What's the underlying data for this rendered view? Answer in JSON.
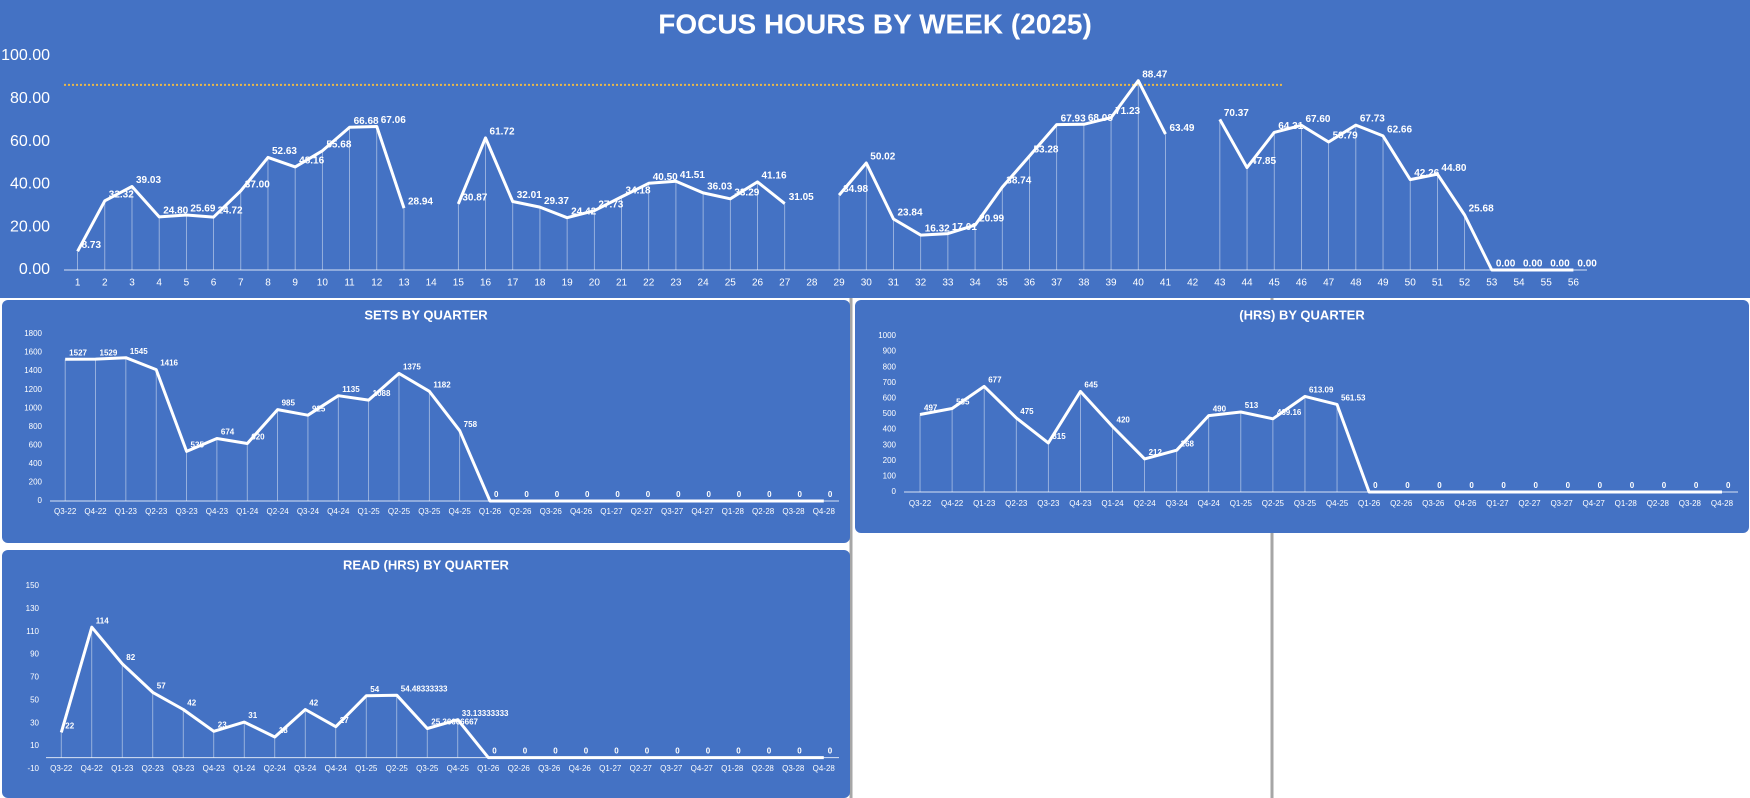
{
  "chart_data": [
    {
      "type": "line",
      "title": "FOCUS HOURS BY WEEK (2025)",
      "color": "#ffffff",
      "background": "#4472c4",
      "grid": false,
      "categories": [
        "1",
        "2",
        "3",
        "4",
        "5",
        "6",
        "7",
        "8",
        "9",
        "10",
        "11",
        "12",
        "13",
        "14",
        "15",
        "16",
        "17",
        "18",
        "19",
        "20",
        "21",
        "22",
        "23",
        "24",
        "25",
        "26",
        "27",
        "28",
        "29",
        "30",
        "31",
        "32",
        "33",
        "34",
        "35",
        "36",
        "37",
        "38",
        "39",
        "40",
        "41",
        "42",
        "43",
        "44",
        "45",
        "46",
        "47",
        "48",
        "49",
        "50",
        "51",
        "52",
        "53",
        "54",
        "55",
        "56"
      ],
      "values": [
        8.73,
        32.32,
        39.03,
        24.8,
        25.69,
        24.72,
        37.0,
        52.63,
        48.16,
        55.68,
        66.68,
        67.06,
        28.94,
        null,
        30.87,
        61.72,
        32.01,
        29.37,
        24.42,
        27.73,
        34.18,
        40.5,
        41.51,
        36.03,
        33.29,
        41.16,
        31.05,
        null,
        34.98,
        50.02,
        23.84,
        16.32,
        17.01,
        20.99,
        38.74,
        53.28,
        67.93,
        68.08,
        71.23,
        88.47,
        63.49,
        null,
        70.37,
        47.85,
        64.31,
        67.6,
        59.79,
        67.73,
        62.66,
        42.26,
        44.8,
        25.68,
        0,
        0,
        0,
        0
      ],
      "value_labels": [
        "8.73",
        "32.32",
        "39.03",
        "24.80",
        "25.69",
        "24.72",
        "37.00",
        "52.63",
        "48.16",
        "55.68",
        "66.68",
        "67.06",
        "28.94",
        null,
        "30.87",
        "61.72",
        "32.01",
        "29.37",
        "24.42",
        "27.73",
        "34.18",
        "40.50",
        "41.51",
        "36.03",
        "33.29",
        "41.16",
        "31.05",
        null,
        "34.98",
        "50.02",
        "23.84",
        "16.32",
        "17.01",
        "20.99",
        "38.74",
        "53.28",
        "67.93",
        "68.08",
        "71.23",
        "88.47",
        "63.49",
        null,
        "70.37",
        "47.85",
        "64.31",
        "67.60",
        "59.79",
        "67.73",
        "62.66",
        "42.26",
        "44.80",
        "25.68",
        "0.00",
        "0.00",
        "0.00",
        "0.00"
      ],
      "ylim": [
        0,
        100
      ],
      "yticks": [
        {
          "value": 0,
          "label": "0.00"
        },
        {
          "value": 20,
          "label": "20.00"
        },
        {
          "value": 40,
          "label": "40.00"
        },
        {
          "value": 60,
          "label": "60.00"
        },
        {
          "value": 80,
          "label": "80.00"
        },
        {
          "value": 100,
          "label": "100.00"
        }
      ],
      "reference_line": {
        "value": 86.5,
        "color": "#e8b84a"
      }
    },
    {
      "type": "line",
      "title": "SETS BY QUARTER",
      "color": "#ffffff",
      "background": "#4472c4",
      "grid": false,
      "categories": [
        "Q3-22",
        "Q4-22",
        "Q1-23",
        "Q2-23",
        "Q3-23",
        "Q4-23",
        "Q1-24",
        "Q2-24",
        "Q3-24",
        "Q4-24",
        "Q1-25",
        "Q2-25",
        "Q3-25",
        "Q4-25",
        "Q1-26",
        "Q2-26",
        "Q3-26",
        "Q4-26",
        "Q1-27",
        "Q2-27",
        "Q3-27",
        "Q4-27",
        "Q1-28",
        "Q2-28",
        "Q3-28",
        "Q4-28"
      ],
      "values": [
        1527,
        1529,
        1545,
        1416,
        535,
        674,
        620,
        985,
        925,
        1135,
        1088,
        1375,
        1182,
        758,
        0,
        0,
        0,
        0,
        0,
        0,
        0,
        0,
        0,
        0,
        0,
        0
      ],
      "ylim": [
        0,
        1800
      ],
      "yticks": [
        0,
        200,
        400,
        600,
        800,
        1000,
        1200,
        1400,
        1600,
        1800
      ]
    },
    {
      "type": "line",
      "title": "(HRS) BY QUARTER",
      "color": "#ffffff",
      "background": "#4472c4",
      "grid": false,
      "categories": [
        "Q3-22",
        "Q4-22",
        "Q1-23",
        "Q2-23",
        "Q3-23",
        "Q4-23",
        "Q1-24",
        "Q2-24",
        "Q3-24",
        "Q4-24",
        "Q1-25",
        "Q2-25",
        "Q3-25",
        "Q4-25",
        "Q1-26",
        "Q2-26",
        "Q3-26",
        "Q4-26",
        "Q1-27",
        "Q2-27",
        "Q3-27",
        "Q4-27",
        "Q1-28",
        "Q2-28",
        "Q3-28",
        "Q4-28"
      ],
      "values": [
        497,
        535,
        677,
        475,
        315,
        645,
        420,
        212,
        268,
        490,
        513,
        469.16,
        613.09,
        561.53,
        0,
        0,
        0,
        0,
        0,
        0,
        0,
        0,
        0,
        0,
        0,
        0
      ],
      "ylim": [
        0,
        1000
      ],
      "yticks": [
        0,
        100,
        200,
        300,
        400,
        500,
        600,
        700,
        800,
        900,
        1000
      ]
    },
    {
      "type": "line",
      "title": "READ (HRS) BY QUARTER",
      "color": "#ffffff",
      "background": "#4472c4",
      "grid": false,
      "categories": [
        "Q3-22",
        "Q4-22",
        "Q1-23",
        "Q2-23",
        "Q3-23",
        "Q4-23",
        "Q1-24",
        "Q2-24",
        "Q3-24",
        "Q4-24",
        "Q1-25",
        "Q2-25",
        "Q3-25",
        "Q4-25",
        "Q1-26",
        "Q2-26",
        "Q3-26",
        "Q4-26",
        "Q1-27",
        "Q2-27",
        "Q3-27",
        "Q4-27",
        "Q1-28",
        "Q2-28",
        "Q3-28",
        "Q4-28"
      ],
      "values": [
        22,
        114,
        82,
        57,
        42,
        23,
        31,
        18,
        42,
        27,
        54,
        54.48333333,
        25.36666667,
        33.13333333,
        0,
        0,
        0,
        0,
        0,
        0,
        0,
        0,
        0,
        0,
        0,
        0
      ],
      "ylim": [
        -10,
        150
      ],
      "yticks": [
        -10,
        10,
        30,
        50,
        70,
        90,
        110,
        130,
        150
      ]
    }
  ]
}
